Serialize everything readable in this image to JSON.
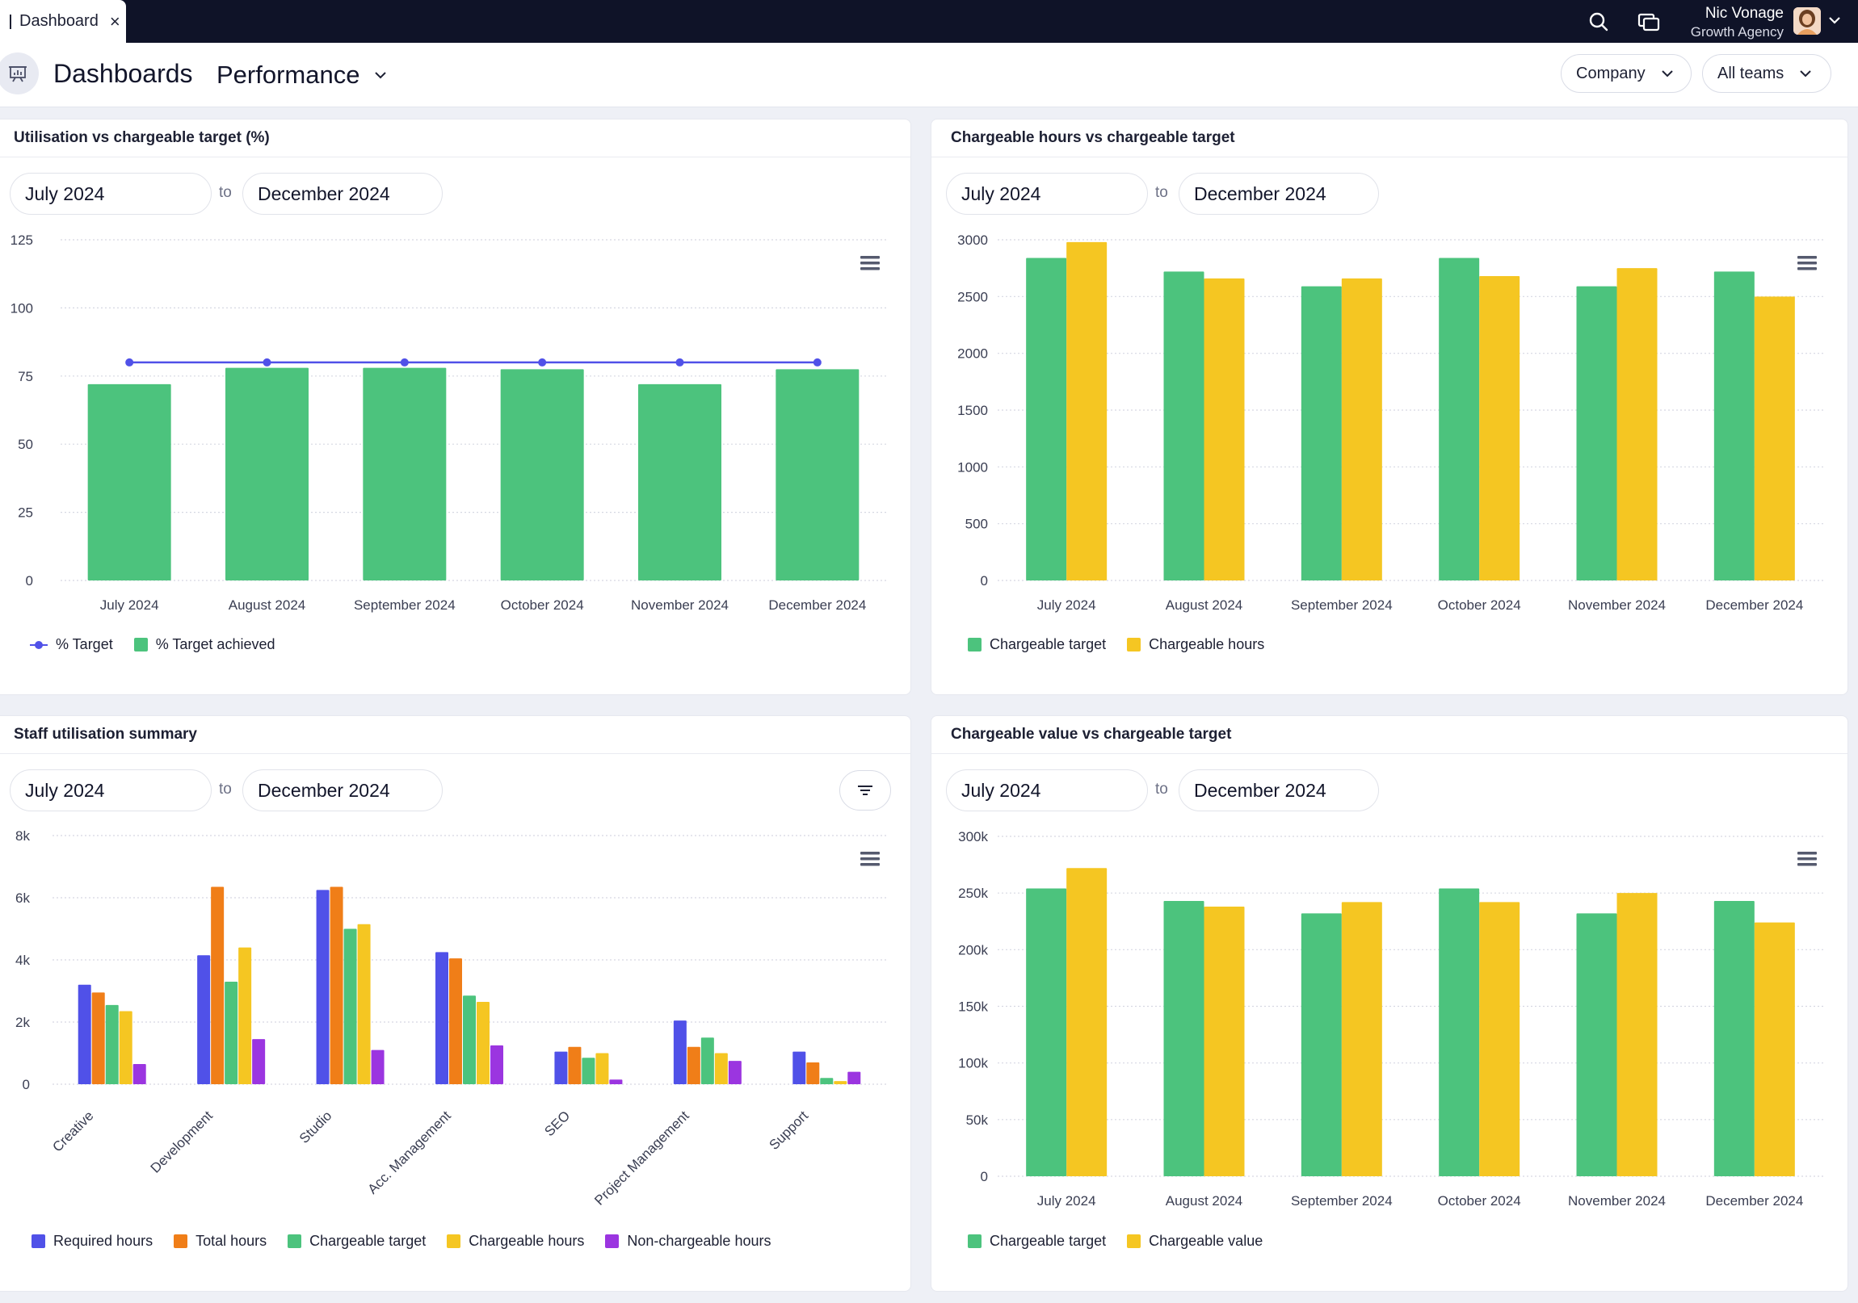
{
  "topbar": {
    "tab_label": "Dashboard",
    "user_name": "Nic Vonage",
    "user_company": "Growth Agency"
  },
  "header": {
    "title": "Dashboards",
    "dashboard_select": "Performance",
    "company_filter": "Company",
    "teams_filter": "All teams"
  },
  "colors": {
    "green": "#4cc37d",
    "yellow": "#f5c622",
    "blue": "#5051e8",
    "orange": "#f07e18",
    "purple": "#9b35e0",
    "topbar": "#0f1328"
  },
  "range_to": "to",
  "cards": {
    "util": {
      "title": "Utilisation vs chargeable target (%)",
      "date_from": "July 2024",
      "date_to": "December 2024"
    },
    "hours": {
      "title": "Chargeable hours vs chargeable target",
      "date_from": "July 2024",
      "date_to": "December 2024"
    },
    "staff": {
      "title": "Staff utilisation summary",
      "date_from": "July 2024",
      "date_to": "December 2024"
    },
    "value": {
      "title": "Chargeable value vs chargeable target",
      "date_from": "July 2024",
      "date_to": "December 2024"
    }
  },
  "chart_data": [
    {
      "id": "util",
      "type": "bar",
      "title": "Utilisation vs chargeable target (%)",
      "categories": [
        "July 2024",
        "August 2024",
        "September 2024",
        "October 2024",
        "November 2024",
        "December 2024"
      ],
      "ylim": [
        0,
        125
      ],
      "yticks": [
        "0",
        "25",
        "50",
        "75",
        "100",
        "125"
      ],
      "grid": true,
      "legend_position": "bottom-left",
      "series": [
        {
          "name": "% Target",
          "kind": "line",
          "color": "#5051e8",
          "values": [
            80,
            80,
            80,
            80,
            80,
            80
          ]
        },
        {
          "name": "% Target achieved",
          "kind": "bar",
          "color": "#4cc37d",
          "values": [
            72,
            78,
            78,
            77.5,
            72,
            77.5
          ]
        }
      ]
    },
    {
      "id": "hours",
      "type": "bar",
      "title": "Chargeable hours vs chargeable target",
      "categories": [
        "July 2024",
        "August 2024",
        "September 2024",
        "October 2024",
        "November 2024",
        "December 2024"
      ],
      "ylim": [
        0,
        3000
      ],
      "yticks": [
        "0",
        "500",
        "1000",
        "1500",
        "2000",
        "2500",
        "3000"
      ],
      "grid": true,
      "legend_position": "bottom-left",
      "series": [
        {
          "name": "Chargeable target",
          "color": "#4cc37d",
          "values": [
            2840,
            2720,
            2590,
            2840,
            2590,
            2720
          ]
        },
        {
          "name": "Chargeable hours",
          "color": "#f5c622",
          "values": [
            2980,
            2660,
            2660,
            2680,
            2750,
            2500
          ]
        }
      ]
    },
    {
      "id": "staff",
      "type": "bar",
      "title": "Staff utilisation summary",
      "categories": [
        "Creative",
        "Development",
        "Studio",
        "Acc. Management",
        "SEO",
        "Project Management",
        "Support"
      ],
      "ylim": [
        0,
        8000
      ],
      "yticks": [
        "0",
        "2k",
        "4k",
        "6k",
        "8k"
      ],
      "grid": true,
      "legend_position": "bottom-left",
      "series": [
        {
          "name": "Required hours",
          "color": "#5051e8",
          "values": [
            3200,
            4150,
            6250,
            4250,
            1050,
            2050,
            1050
          ]
        },
        {
          "name": "Total hours",
          "color": "#f07e18",
          "values": [
            2950,
            6350,
            6350,
            4050,
            1200,
            1200,
            700
          ]
        },
        {
          "name": "Chargeable target",
          "color": "#4cc37d",
          "values": [
            2550,
            3300,
            5000,
            2850,
            850,
            1500,
            200
          ]
        },
        {
          "name": "Chargeable hours",
          "color": "#f5c622",
          "values": [
            2350,
            4400,
            5150,
            2650,
            1000,
            1000,
            100
          ]
        },
        {
          "name": "Non-chargeable hours",
          "color": "#9b35e0",
          "values": [
            650,
            1450,
            1100,
            1250,
            150,
            750,
            400
          ]
        }
      ]
    },
    {
      "id": "value",
      "type": "bar",
      "title": "Chargeable value vs chargeable target",
      "categories": [
        "July 2024",
        "August 2024",
        "September 2024",
        "October 2024",
        "November 2024",
        "December 2024"
      ],
      "ylim": [
        0,
        300000
      ],
      "yticks": [
        "0",
        "50k",
        "100k",
        "150k",
        "200k",
        "250k",
        "300k"
      ],
      "grid": true,
      "legend_position": "bottom-left",
      "series": [
        {
          "name": "Chargeable target",
          "color": "#4cc37d",
          "values": [
            254000,
            243000,
            232000,
            254000,
            232000,
            243000
          ]
        },
        {
          "name": "Chargeable value",
          "color": "#f5c622",
          "values": [
            272000,
            238000,
            242000,
            242000,
            250000,
            224000
          ]
        }
      ]
    }
  ]
}
